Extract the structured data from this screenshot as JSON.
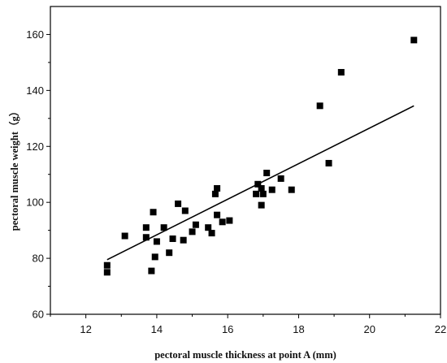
{
  "chart_data": {
    "type": "scatter",
    "title": "",
    "xlabel": "pectoral muscle thickness at point A (mm)",
    "ylabel": "pectoral muscle weight（g）",
    "xlim": [
      11,
      22
    ],
    "ylim": [
      60,
      170
    ],
    "x_ticks": [
      "12",
      "14",
      "16",
      "18",
      "20",
      "22"
    ],
    "y_ticks": [
      "60",
      "80",
      "100",
      "120",
      "140",
      "160"
    ],
    "grid": false,
    "legend": "none",
    "marker": "square",
    "colors": {
      "marker": "#000000",
      "line": "#000000",
      "axis": "#000000"
    },
    "points": [
      {
        "x": 12.6,
        "y": 77.5
      },
      {
        "x": 12.6,
        "y": 75.0
      },
      {
        "x": 13.1,
        "y": 88.0
      },
      {
        "x": 13.7,
        "y": 91.0
      },
      {
        "x": 13.7,
        "y": 87.5
      },
      {
        "x": 13.85,
        "y": 75.5
      },
      {
        "x": 13.9,
        "y": 96.5
      },
      {
        "x": 13.95,
        "y": 80.5
      },
      {
        "x": 14.0,
        "y": 86.0
      },
      {
        "x": 14.2,
        "y": 91.0
      },
      {
        "x": 14.35,
        "y": 82.0
      },
      {
        "x": 14.45,
        "y": 87.0
      },
      {
        "x": 14.6,
        "y": 99.5
      },
      {
        "x": 14.75,
        "y": 86.5
      },
      {
        "x": 14.8,
        "y": 97.0
      },
      {
        "x": 15.0,
        "y": 89.5
      },
      {
        "x": 15.1,
        "y": 92.0
      },
      {
        "x": 15.45,
        "y": 91.0
      },
      {
        "x": 15.55,
        "y": 89.0
      },
      {
        "x": 15.65,
        "y": 103.0
      },
      {
        "x": 15.7,
        "y": 105.0
      },
      {
        "x": 15.7,
        "y": 95.5
      },
      {
        "x": 15.85,
        "y": 93.0
      },
      {
        "x": 16.05,
        "y": 93.5
      },
      {
        "x": 16.8,
        "y": 103.0
      },
      {
        "x": 16.85,
        "y": 106.5
      },
      {
        "x": 16.95,
        "y": 105.0
      },
      {
        "x": 16.95,
        "y": 99.0
      },
      {
        "x": 17.0,
        "y": 103.0
      },
      {
        "x": 17.1,
        "y": 110.5
      },
      {
        "x": 17.25,
        "y": 104.5
      },
      {
        "x": 17.5,
        "y": 108.5
      },
      {
        "x": 17.8,
        "y": 104.5
      },
      {
        "x": 18.6,
        "y": 134.5
      },
      {
        "x": 18.85,
        "y": 114.0
      },
      {
        "x": 19.2,
        "y": 146.5
      },
      {
        "x": 21.25,
        "y": 158.0
      }
    ],
    "trendline": {
      "type": "linear",
      "x": [
        12.6,
        21.25
      ],
      "y": [
        79.5,
        134.5
      ]
    }
  }
}
